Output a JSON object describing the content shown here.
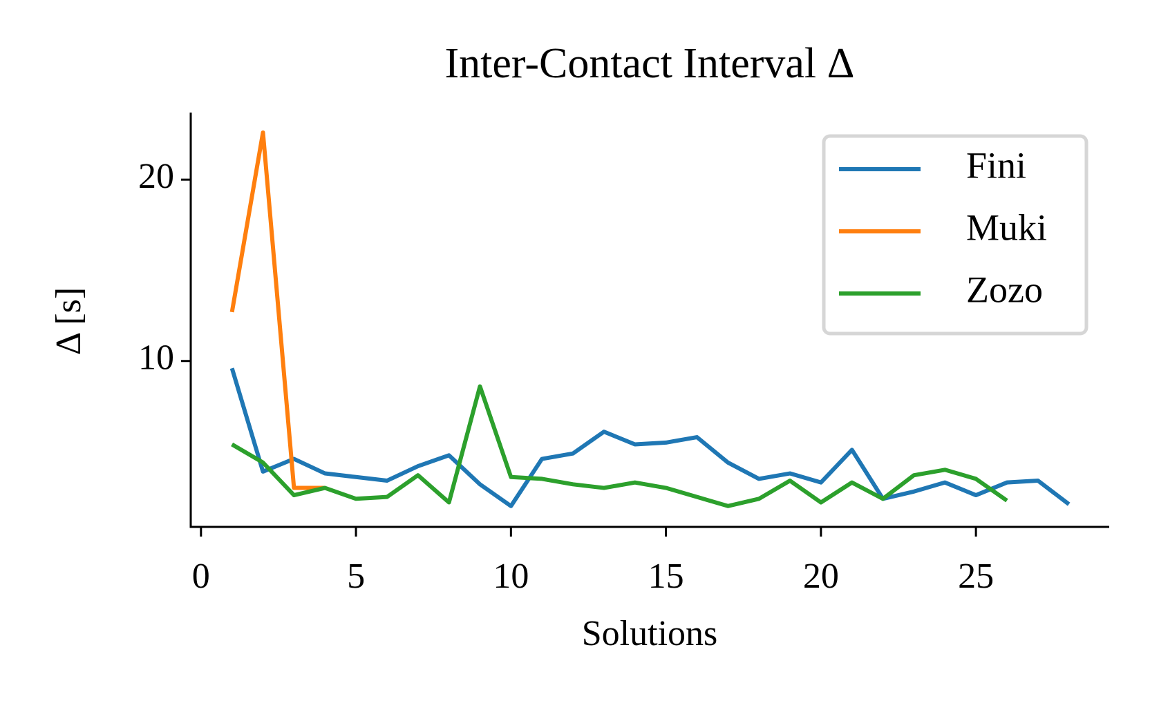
{
  "chart_data": {
    "type": "line",
    "title": "Inter-Contact Interval Δ",
    "xlabel": "Solutions",
    "ylabel": "Δ [s]",
    "x": [
      1,
      2,
      3,
      4,
      5,
      6,
      7,
      8,
      9,
      10,
      11,
      12,
      13,
      14,
      15,
      16,
      17,
      18,
      19,
      20,
      21,
      22,
      23,
      24,
      25,
      26,
      27,
      28
    ],
    "series": [
      {
        "name": "Fini",
        "color": "#1f77b4",
        "values": [
          9.6,
          3.9,
          4.6,
          3.8,
          3.6,
          3.4,
          4.2,
          4.8,
          3.2,
          2.0,
          4.6,
          4.9,
          6.1,
          5.4,
          5.5,
          5.8,
          4.4,
          3.5,
          3.8,
          3.3,
          5.1,
          2.4,
          2.8,
          3.3,
          2.6,
          3.3,
          3.4,
          2.1
        ]
      },
      {
        "name": "Muki",
        "color": "#ff7f0e",
        "values": [
          12.7,
          22.6,
          3.0,
          3.0,
          null,
          null,
          null,
          null,
          null,
          null,
          null,
          null,
          null,
          null,
          null,
          null,
          null,
          null,
          null,
          null,
          null,
          null,
          null,
          null,
          null,
          null,
          null,
          null
        ]
      },
      {
        "name": "Zozo",
        "color": "#2ca02c",
        "values": [
          5.4,
          4.4,
          2.6,
          3.0,
          2.4,
          2.5,
          3.7,
          2.2,
          8.6,
          3.6,
          3.5,
          3.2,
          3.0,
          3.3,
          3.0,
          2.5,
          2.0,
          2.4,
          3.4,
          2.2,
          3.3,
          2.4,
          3.7,
          4.0,
          3.5,
          2.3,
          null,
          null
        ]
      }
    ],
    "xlim": [
      -0.33,
      29.3
    ],
    "ylim": [
      0.85,
      23.7
    ],
    "xticks": [
      0,
      5,
      10,
      15,
      20,
      25
    ],
    "yticks": [
      10,
      20
    ],
    "legend": "upper right",
    "grid": false
  }
}
